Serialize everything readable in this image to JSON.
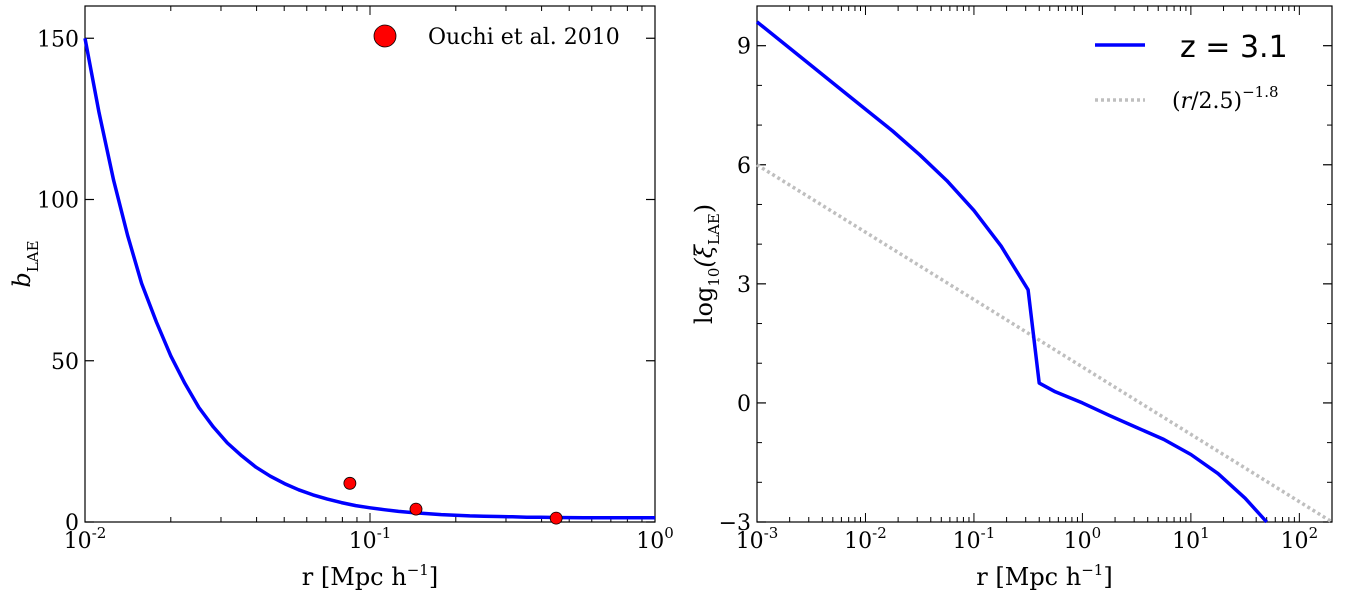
{
  "chart_data": [
    {
      "type": "line",
      "xlabel": "r [Mpc h⁻¹]",
      "ylabel": "b_LAE",
      "xscale": "log",
      "xlim": [
        0.01,
        1
      ],
      "ylim": [
        0,
        160
      ],
      "x_tick_labels": [
        "10^-2",
        "10^-1",
        "10^0"
      ],
      "y_tick_labels": [
        "0",
        "50",
        "100",
        "150"
      ],
      "series": [
        {
          "kind": "line",
          "color": "#0000ff",
          "x": [
            0.01,
            0.0112,
            0.0126,
            0.0141,
            0.0158,
            0.0178,
            0.02,
            0.0224,
            0.0251,
            0.0282,
            0.0316,
            0.0355,
            0.0398,
            0.0447,
            0.0501,
            0.0562,
            0.0631,
            0.0708,
            0.0794,
            0.0891,
            0.1,
            0.1122,
            0.1259,
            0.1413,
            0.1585,
            0.1778,
            0.1995,
            0.2239,
            0.2512,
            0.2818,
            0.3162,
            0.3548,
            0.3981,
            0.4467,
            0.5012,
            0.5623,
            0.631,
            0.7079,
            0.7943,
            0.8913,
            1.0
          ],
          "y": [
            150.0,
            127.0,
            106.0,
            89.0,
            74.0,
            62.0,
            51.5,
            43.0,
            35.5,
            29.5,
            24.5,
            20.5,
            17.0,
            14.2,
            11.9,
            10.0,
            8.4,
            7.1,
            6.0,
            5.1,
            4.4,
            3.8,
            3.3,
            2.9,
            2.6,
            2.3,
            2.1,
            1.9,
            1.8,
            1.7,
            1.6,
            1.5,
            1.45,
            1.4,
            1.35,
            1.33,
            1.31,
            1.3,
            1.3,
            1.3,
            1.3
          ]
        },
        {
          "kind": "scatter",
          "name": "Ouchi et al. 2010",
          "color": "#ff0000",
          "x": [
            0.085,
            0.145,
            0.45
          ],
          "y": [
            12,
            4,
            1.2
          ]
        }
      ],
      "legend": "top-right",
      "grid": false
    },
    {
      "type": "line",
      "xlabel": "r [Mpc h⁻¹]",
      "ylabel": "log₁₀(ξ_LAE)",
      "xscale": "log",
      "xlim": [
        0.001,
        200
      ],
      "ylim": [
        -3,
        10
      ],
      "x_tick_labels": [
        "10^-3",
        "10^-2",
        "10^-1",
        "10^0",
        "10^1",
        "10^2"
      ],
      "y_tick_labels": [
        "−3",
        "0",
        "3",
        "6",
        "9"
      ],
      "series": [
        {
          "kind": "line",
          "name": "z = 3.1",
          "color": "#0000ff",
          "x": [
            0.001,
            0.00178,
            0.00316,
            0.00562,
            0.01,
            0.0178,
            0.0316,
            0.0562,
            0.1,
            0.178,
            0.316,
            0.4,
            0.562,
            1.0,
            1.78,
            3.16,
            5.62,
            10.0,
            17.8,
            31.6,
            50.0
          ],
          "y": [
            9.6,
            9.05,
            8.5,
            7.95,
            7.4,
            6.85,
            6.25,
            5.6,
            4.85,
            3.95,
            2.85,
            0.5,
            0.28,
            0.0,
            -0.32,
            -0.62,
            -0.92,
            -1.3,
            -1.78,
            -2.4,
            -3.0
          ]
        },
        {
          "kind": "line",
          "name": "(r/2.5)^−1.8",
          "color": "#bfbfbf",
          "x": [
            0.001,
            200
          ],
          "y": [
            6.0,
            -3.0
          ]
        }
      ],
      "legend": "top-right",
      "grid": false
    }
  ]
}
